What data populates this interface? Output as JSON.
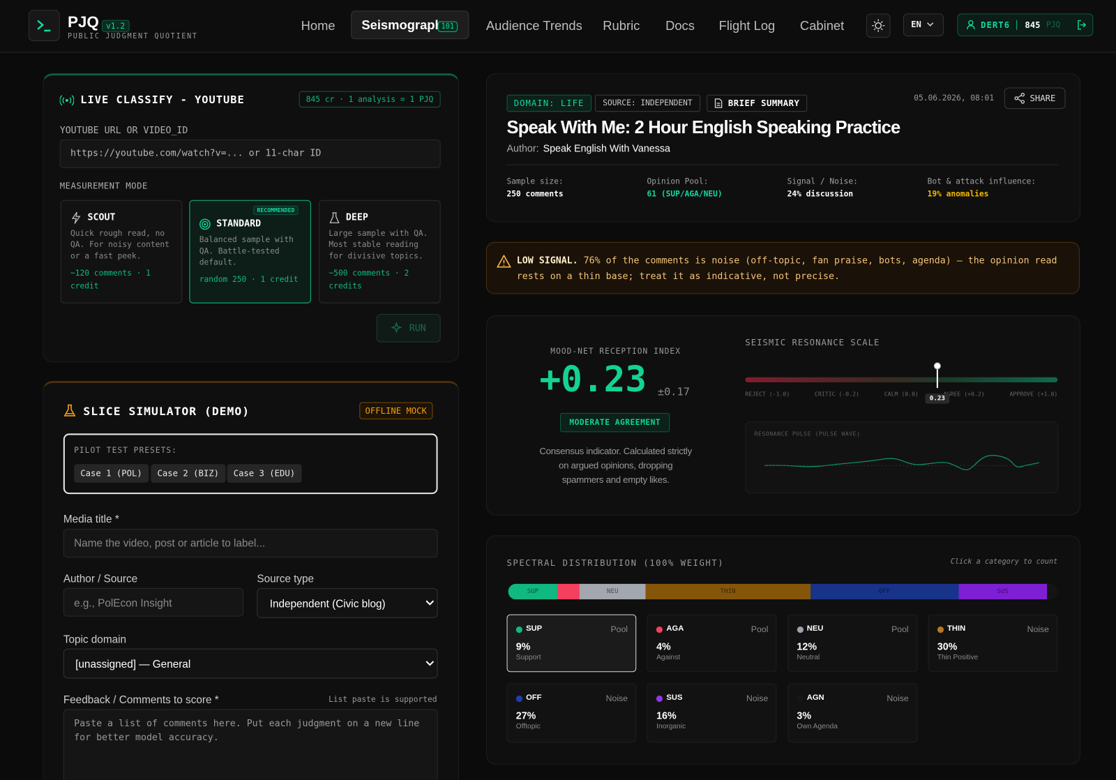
{
  "header": {
    "logo": "PJQ",
    "version": "v1.2",
    "tagline": "PUBLIC JUDGMENT QUOTIENT",
    "nav": [
      {
        "label": "Home"
      },
      {
        "label": "Seismograph",
        "badge": "101"
      },
      {
        "label": "Audience Trends"
      },
      {
        "label": "Rubric"
      },
      {
        "label": "Docs"
      },
      {
        "label": "Flight Log"
      },
      {
        "label": "Cabinet"
      }
    ],
    "lang": "EN",
    "user": "DERT6",
    "balance": "845",
    "balance_unit": "PJQ"
  },
  "classify": {
    "title": "LIVE CLASSIFY - YOUTUBE",
    "rate": "845 cr · 1 analysis = 1 PJQ",
    "url_label": "YOUTUBE URL OR VIDEO_ID",
    "url_placeholder": "https://youtube.com/watch?v=... or 11-char ID",
    "mode_label": "MEASUREMENT MODE",
    "modes": [
      {
        "name": "SCOUT",
        "desc": "Quick rough read, no QA. For noisy content or a fast peek.",
        "cost": "~120 comments · 1 credit"
      },
      {
        "name": "STANDARD",
        "badge": "RECOMMENDED",
        "desc": "Balanced sample with QA. Battle-tested default.",
        "cost": "random 250 · 1 credit"
      },
      {
        "name": "DEEP",
        "desc": "Large sample with QA. Most stable reading for divisive topics.",
        "cost": "~500 comments · 2 credits"
      }
    ],
    "run": "RUN"
  },
  "simulator": {
    "title": "SLICE SIMULATOR (DEMO)",
    "badge": "OFFLINE MOCK",
    "presets_label": "PILOT TEST PRESETS:",
    "presets": [
      "Case 1 (POL)",
      "Case 2 (BIZ)",
      "Case 3 (EDU)"
    ],
    "media_label": "Media title *",
    "media_placeholder": "Name the video, post or article to label...",
    "author_label": "Author / Source",
    "author_placeholder": "e.g., PolEcon Insight",
    "source_label": "Source type",
    "source_value": "Independent (Civic blog)",
    "topic_label": "Topic domain",
    "topic_value": "[unassigned] — General",
    "feedback_label": "Feedback / Comments to score *",
    "feedback_hint": "List paste is supported",
    "feedback_placeholder": "Paste a list of comments here. Put each judgment on a new line for better model accuracy."
  },
  "report": {
    "tags": [
      "DOMAIN: LIFE",
      "SOURCE: INDEPENDENT",
      "BRIEF SUMMARY"
    ],
    "date": "05.06.2026, 08:01",
    "share": "SHARE",
    "title": "Speak With Me: 2 Hour English Speaking Practice",
    "author_label": "Author:",
    "author": "Speak English With Vanessa",
    "stats": [
      {
        "label": "Sample size:",
        "value": "250 comments"
      },
      {
        "label": "Opinion Pool:",
        "value": "61 (SUP/AGA/NEU)"
      },
      {
        "label": "Signal / Noise:",
        "value": "24% discussion"
      },
      {
        "label": "Bot & attack influence:",
        "value": "19% anomalies"
      }
    ]
  },
  "warning": {
    "strong": "LOW SIGNAL.",
    "text": "76% of the comments is noise (off-topic, fan praise, bots, agenda) — the opinion read rests on a thin base; treat it as indicative, not precise."
  },
  "mood": {
    "title": "MOOD-NET RECEPTION INDEX",
    "value": "+0.23",
    "error": "±0.17",
    "badge": "MODERATE AGREEMENT",
    "desc": "Consensus indicator. Calculated strictly on argued opinions, dropping spammers and empty likes.",
    "scale": {
      "title": "SEISMIC RESONANCE SCALE",
      "range": [
        -1,
        1
      ],
      "tick_labels": [
        "REJECT (-1.0)",
        "CRITIC (-0.2)",
        "CALM (0.0)",
        "AGREE (+0.2)",
        "APPROVE (+1.0)"
      ],
      "marker": 0.23,
      "marker_label": "0.23"
    },
    "pulse_title": "RESONANCE PULSE (PULSE WAVE)"
  },
  "distribution": {
    "title": "SPECTRAL DISTRIBUTION (100% WEIGHT)",
    "hint": "Click a category to count",
    "categories": [
      {
        "code": "SUP",
        "share": 9,
        "share_label": "9%",
        "name": "Support",
        "group": "Pool",
        "color": "#10b981",
        "bar_color": "#10b981"
      },
      {
        "code": "AGA",
        "share": 4,
        "share_label": "4%",
        "name": "Against",
        "group": "Pool",
        "color": "#f43f5e",
        "bar_color": "#f43f5e"
      },
      {
        "code": "NEU",
        "share": 12,
        "share_label": "12%",
        "name": "Neutral",
        "group": "Pool",
        "color": "#9ca3af",
        "bar_color": "#a3a7ae"
      },
      {
        "code": "THIN",
        "share": 30,
        "share_label": "30%",
        "name": "Thin Positive",
        "group": "Noise",
        "color": "#b7791f",
        "bar_color": "#85560a"
      },
      {
        "code": "OFF",
        "share": 27,
        "share_label": "27%",
        "name": "Offtopic",
        "group": "Noise",
        "color": "#1e40af",
        "bar_color": "#17338a"
      },
      {
        "code": "SUS",
        "share": 16,
        "share_label": "16%",
        "name": "Inorganic",
        "group": "Noise",
        "color": "#9333ea",
        "bar_color": "#7e1fd6"
      },
      {
        "code": "AGN",
        "share": 3,
        "share_label": "3%",
        "name": "Own Agenda",
        "group": "Noise",
        "color": "#161616",
        "bar_color": "#141414"
      }
    ]
  }
}
